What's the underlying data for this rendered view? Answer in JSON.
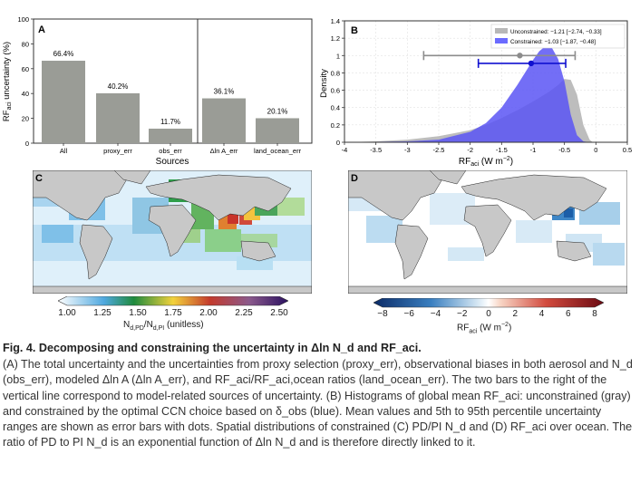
{
  "figure": {
    "panel_a": {
      "letter": "A",
      "xlabel": "Sources",
      "ylabel": "RF_aci uncertainty (%)",
      "ylim": [
        0,
        100
      ],
      "yticks": [
        "0",
        "20",
        "40",
        "60",
        "80",
        "100"
      ]
    },
    "panel_b": {
      "letter": "B",
      "xlabel": "RF_aci (W m^-2)",
      "ylabel": "Density",
      "xticks": [
        "-4",
        "-3.5",
        "-3",
        "-2.5",
        "-2",
        "-1.5",
        "-1",
        "-0.5",
        "0",
        "0.5"
      ],
      "yticks": [
        "0",
        "0.2",
        "0.4",
        "0.6",
        "0.8",
        "1",
        "1.2",
        "1.4"
      ],
      "legend": [
        {
          "label": "Unconstrained: −1.21 [−2.74, −0.33]",
          "color": "#b8b8b8"
        },
        {
          "label": "Constrained: −1.03 [−1.87, −0.48]",
          "color": "#6b6bff"
        }
      ]
    },
    "panel_c": {
      "letter": "C",
      "colorbar_ticks": [
        "1.00",
        "1.25",
        "1.50",
        "1.75",
        "2.00",
        "2.25",
        "2.50"
      ],
      "colorbar_label": "N_d,PD/N_d,PI (unitless)"
    },
    "panel_d": {
      "letter": "D",
      "colorbar_ticks": [
        "−8",
        "−6",
        "−4",
        "−2",
        "0",
        "2",
        "4",
        "6",
        "8"
      ],
      "colorbar_label": "RF_aci (W m^-2)"
    }
  },
  "chart_data": [
    {
      "type": "bar",
      "title": "A",
      "categories": [
        "All",
        "proxy_err",
        "obs_err",
        "Δln A_err",
        "land_ocean_err"
      ],
      "values": [
        66.4,
        40.2,
        11.7,
        36.1,
        20.1
      ],
      "data_labels": [
        "66.4%",
        "40.2%",
        "11.7%",
        "36.1%",
        "20.1%"
      ],
      "xlabel": "Sources",
      "ylabel": "RF_aci uncertainty (%)",
      "ylim": [
        0,
        100
      ]
    },
    {
      "type": "area",
      "title": "B",
      "xlabel": "RF_aci (W m^-2)",
      "ylabel": "Density",
      "xlim": [
        -4,
        0.5
      ],
      "ylim": [
        0,
        1.4
      ],
      "series": [
        {
          "name": "Unconstrained",
          "mean": -1.21,
          "p5": -2.74,
          "p95": -0.33,
          "x": [
            -4.0,
            -3.5,
            -3.0,
            -2.5,
            -2.0,
            -1.75,
            -1.5,
            -1.25,
            -1.0,
            -0.75,
            -0.6,
            -0.5,
            -0.4,
            -0.3,
            -0.2,
            -0.1,
            -0.05
          ],
          "y": [
            0.0,
            0.01,
            0.03,
            0.07,
            0.14,
            0.2,
            0.28,
            0.37,
            0.47,
            0.58,
            0.66,
            0.73,
            0.72,
            0.55,
            0.2,
            0.03,
            0.0
          ]
        },
        {
          "name": "Constrained",
          "mean": -1.03,
          "p5": -1.87,
          "p95": -0.48,
          "x": [
            -4.0,
            -3.0,
            -2.5,
            -2.0,
            -1.75,
            -1.5,
            -1.25,
            -1.0,
            -0.9,
            -0.8,
            -0.7,
            -0.6,
            -0.5,
            -0.4,
            -0.3,
            -0.2,
            -0.1
          ],
          "y": [
            0.0,
            0.01,
            0.03,
            0.12,
            0.22,
            0.4,
            0.66,
            0.95,
            1.05,
            1.11,
            1.09,
            0.96,
            0.7,
            0.32,
            0.08,
            0.01,
            0.0
          ]
        }
      ]
    }
  ],
  "caption": {
    "title_prefix": "Fig. 4.",
    "title_text": "Decomposing and constraining the uncertainty in Δln N_d and RF_aci.",
    "body": "(A) The total uncertainty and the uncertainties from proxy selection (proxy_err), observational biases in both aerosol and N_d (obs_err), modeled Δln A (Δln A_err), and RF_aci/RF_aci,ocean ratios (land_ocean_err). The two bars to the right of the vertical line correspond to model-related sources of uncertainty. (B) Histograms of global mean RF_aci: unconstrained (gray) and constrained by the optimal CCN choice based on δ_obs (blue). Mean values and 5th to 95th percentile uncertainty ranges are shown as error bars with dots. Spatial distributions of constrained (C) PD/PI N_d and (D) RF_aci over ocean. The ratio of PD to PI N_d is an exponential function of Δln N_d and is therefore directly linked to it."
  }
}
